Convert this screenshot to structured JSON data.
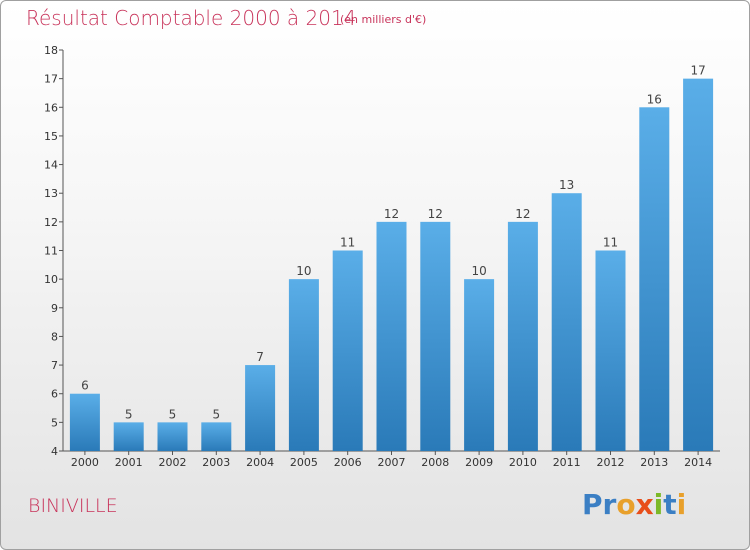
{
  "header": {
    "title": "Résultat Comptable 2000 à 2014",
    "unit": "(en milliers d'€)"
  },
  "footer": {
    "commune": "BINIVILLE",
    "logo": {
      "letters": [
        "P",
        "r",
        "o",
        "x",
        "i",
        "t",
        "i"
      ],
      "colors": [
        "#3b7fc4",
        "#3b7fc4",
        "#e8a02b",
        "#e84e1b",
        "#7cb928",
        "#3b7fc4",
        "#e8a02b"
      ]
    }
  },
  "chart_data": {
    "type": "bar",
    "categories": [
      "2000",
      "2001",
      "2002",
      "2003",
      "2004",
      "2005",
      "2006",
      "2007",
      "2008",
      "2009",
      "2010",
      "2011",
      "2012",
      "2013",
      "2014"
    ],
    "values": [
      6,
      5,
      5,
      5,
      7,
      10,
      11,
      12,
      12,
      10,
      12,
      13,
      11,
      16,
      17
    ],
    "ylim": [
      4,
      18
    ],
    "yticks": [
      4,
      5,
      6,
      7,
      8,
      9,
      10,
      11,
      12,
      13,
      14,
      15,
      16,
      17,
      18
    ],
    "grid": false,
    "bar_color_top": "#5aaee8",
    "bar_color_bottom": "#2a7ab8"
  }
}
